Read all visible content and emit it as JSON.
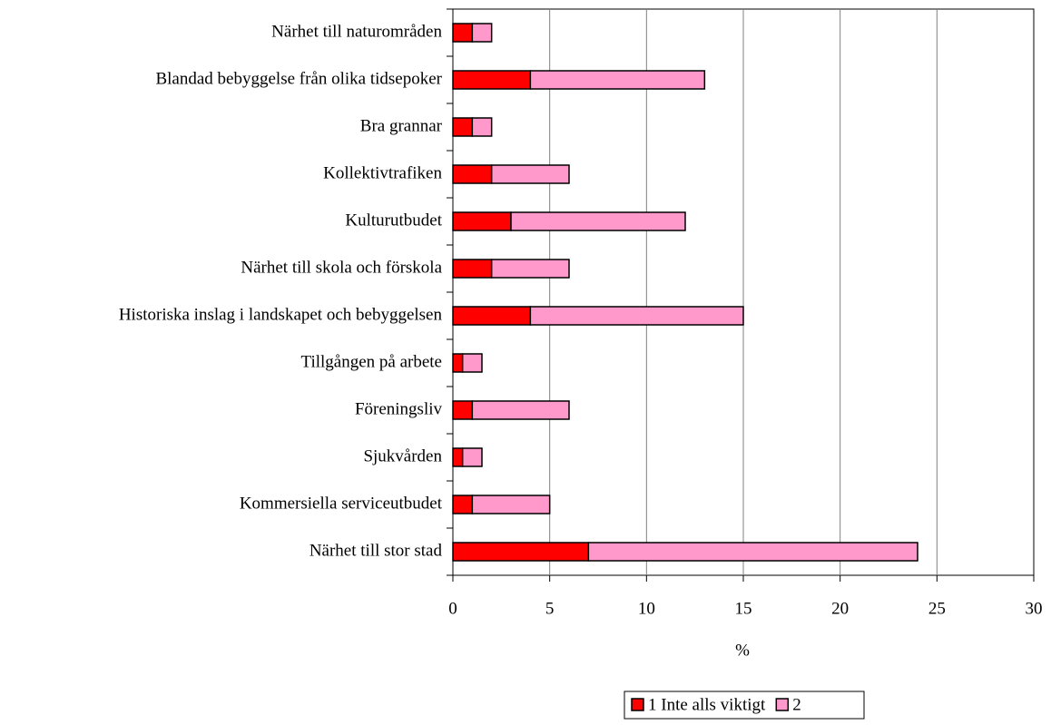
{
  "chart_data": {
    "type": "stacked-bar-horizontal",
    "categories": [
      "Närhet till naturområden",
      "Blandad bebyggelse från olika tidsepoker",
      "Bra grannar",
      "Kollektivtrafiken",
      "Kulturutbudet",
      "Närhet till skola och förskola",
      "Historiska inslag i landskapet och bebyggelsen",
      "Tillgången på arbete",
      "Föreningsliv",
      "Sjukvården",
      "Kommersiella serviceutbudet",
      "Närhet till stor stad"
    ],
    "series": [
      {
        "name": "1 Inte alls viktigt",
        "color": "#ff0000",
        "values": [
          1,
          4,
          1,
          2,
          3,
          2,
          4,
          0.5,
          1,
          0.5,
          1,
          7
        ]
      },
      {
        "name": "2",
        "color": "#ff99cc",
        "values": [
          1,
          9,
          1,
          4,
          9,
          4,
          11,
          1,
          5,
          1,
          4,
          17
        ]
      }
    ],
    "xlabel": "%",
    "xlim": [
      0,
      30
    ],
    "xticks": [
      0,
      5,
      10,
      15,
      20,
      25,
      30
    ],
    "grid": true
  }
}
